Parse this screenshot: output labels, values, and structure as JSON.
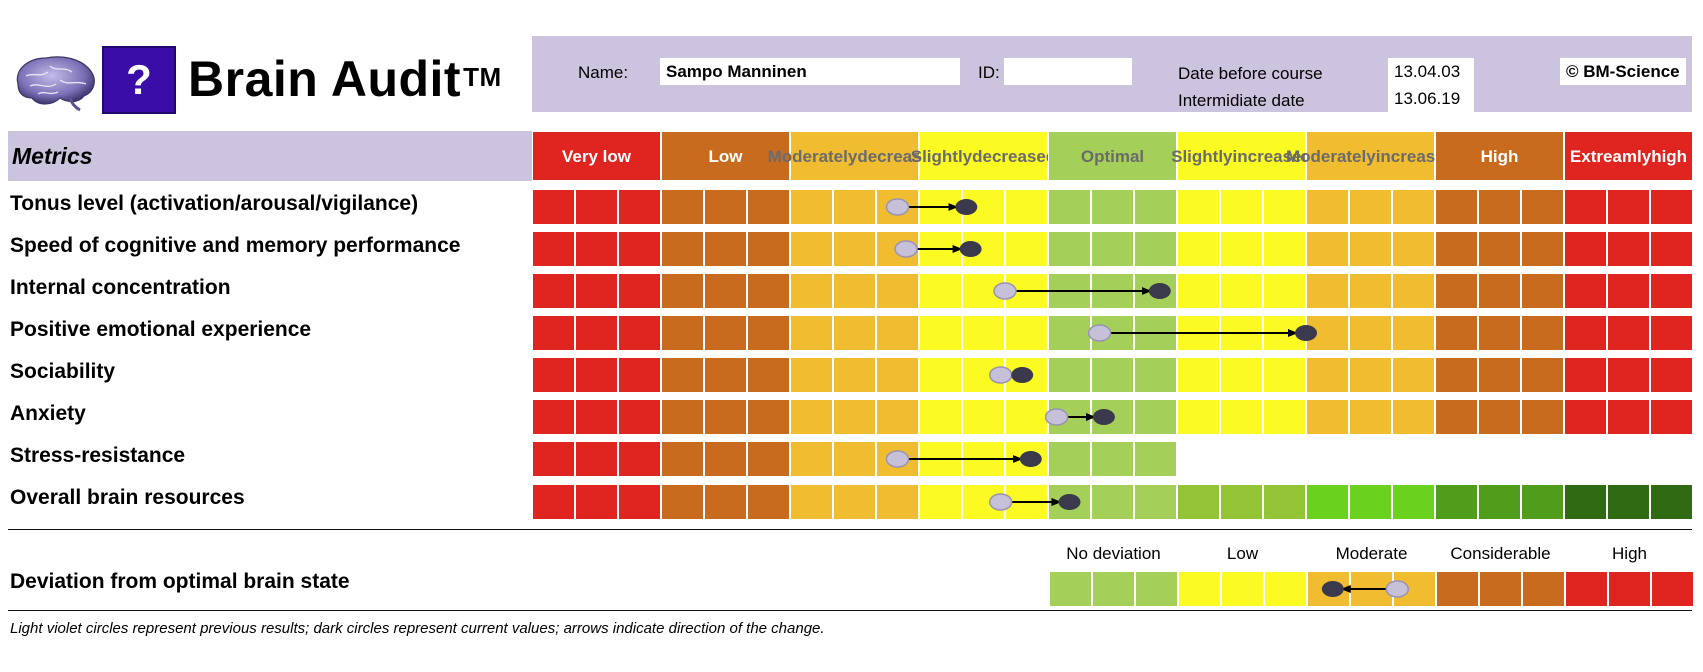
{
  "header": {
    "title": "Brain Audit",
    "trademark": "TM",
    "question_mark": "?",
    "name_label": "Name:",
    "name_value": "Sampo Manninen",
    "id_label": "ID:",
    "id_value": "",
    "date_before_label": "Date before course",
    "date_before_value": "13.04.03",
    "intermediate_label": "Intermidiate date",
    "intermediate_value": "13.06.19",
    "copyright": "© BM-Science"
  },
  "metrics_header": "Metrics",
  "chart_data": {
    "type": "heatmap",
    "categories": [
      {
        "label_lines": [
          "Very low"
        ],
        "color": "#e0241f",
        "text_color": "#ffffff"
      },
      {
        "label_lines": [
          "Low"
        ],
        "color": "#c96b1e",
        "text_color": "#ffffff"
      },
      {
        "label_lines": [
          "Moderately",
          "decreased"
        ],
        "color": "#f0bc30",
        "text_color": "#6b6b6b"
      },
      {
        "label_lines": [
          "Slightly",
          "decreased"
        ],
        "color": "#fbfa22",
        "text_color": "#6b6b6b"
      },
      {
        "label_lines": [
          "Optimal"
        ],
        "color": "#a4cf58",
        "text_color": "#6b6b6b"
      },
      {
        "label_lines": [
          "Slightly",
          "increased"
        ],
        "color": "#fbfa22",
        "text_color": "#6b6b6b"
      },
      {
        "label_lines": [
          "Moderately",
          "increased"
        ],
        "color": "#f0bc30",
        "text_color": "#6b6b6b"
      },
      {
        "label_lines": [
          "High"
        ],
        "color": "#c96b1e",
        "text_color": "#ffffff"
      },
      {
        "label_lines": [
          "Extreamly",
          "high"
        ],
        "color": "#e0241f",
        "text_color": "#ffffff"
      }
    ],
    "cells_per_category": 3,
    "metrics": [
      {
        "name": "Tonus level (activation/arousal/vigilance)",
        "previous": 8.5,
        "current": 10.1,
        "cells": 27
      },
      {
        "name": "Speed of cognitive and memory performance",
        "previous": 8.7,
        "current": 10.2,
        "cells": 27
      },
      {
        "name": "Internal concentration",
        "previous": 11.0,
        "current": 14.6,
        "cells": 27
      },
      {
        "name": "Positive emotional experience",
        "previous": 13.2,
        "current": 18.0,
        "cells": 27
      },
      {
        "name": "Sociability",
        "previous": 10.9,
        "current": 11.4,
        "cells": 27
      },
      {
        "name": "Anxiety",
        "previous": 12.2,
        "current": 13.3,
        "cells": 27
      },
      {
        "name": "Stress-resistance",
        "previous": 8.5,
        "current": 11.6,
        "cells": 15
      },
      {
        "name": "Overall brain resources",
        "previous": 10.9,
        "current": 12.5,
        "cells": 27,
        "resource_scale": true
      }
    ],
    "resource_colors": [
      "#e0241f",
      "#e0241f",
      "#e0241f",
      "#c96b1e",
      "#c96b1e",
      "#c96b1e",
      "#f0bc30",
      "#f0bc30",
      "#f0bc30",
      "#fbfa22",
      "#fbfa22",
      "#fbfa22",
      "#a4cf58",
      "#a4cf58",
      "#a4cf58",
      "#92c436",
      "#92c436",
      "#92c436",
      "#6bd11f",
      "#6bd11f",
      "#6bd11f",
      "#4f9d1a",
      "#4f9d1a",
      "#4f9d1a",
      "#306a12",
      "#306a12",
      "#306a12"
    ],
    "deviation": {
      "label": "Deviation from optimal brain state",
      "levels": [
        {
          "label": "No deviation",
          "color": "#a4cf58"
        },
        {
          "label": "Low",
          "color": "#fbfa22"
        },
        {
          "label": "Moderate",
          "color": "#f0bc30"
        },
        {
          "label": "Considerable",
          "color": "#c96b1e"
        },
        {
          "label": "High",
          "color": "#e0241f"
        }
      ],
      "cells_per_level": 3,
      "previous": 8.1,
      "current": 6.6
    },
    "legend_note": "Light violet circles represent previous results; dark circles represent current values; arrows indicate direction of the change.",
    "previous_color": "#c6c0d8",
    "current_color": "#3a3a4c"
  }
}
